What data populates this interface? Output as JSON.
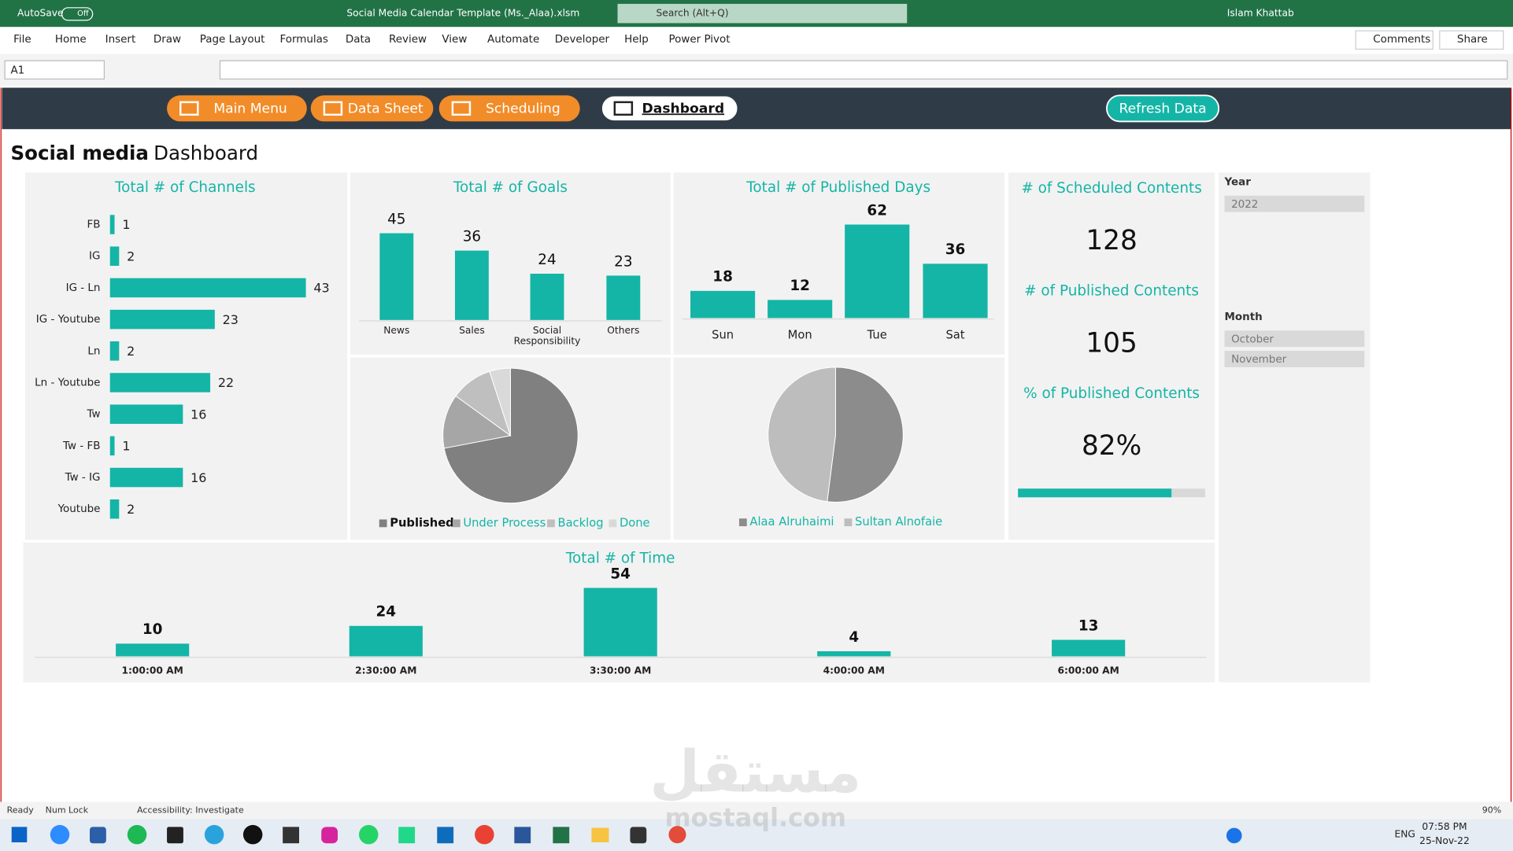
{
  "window": {
    "autosave": "AutoSave",
    "autosave_state": "Off",
    "title": "Social Media Calendar Template (Ms._Alaa).xlsm",
    "search": "Search (Alt+Q)",
    "user": "Islam Khattab"
  },
  "ribbon": {
    "tabs": [
      "File",
      "Home",
      "Insert",
      "Draw",
      "Page Layout",
      "Formulas",
      "Data",
      "Review",
      "View",
      "Automate",
      "Developer",
      "Help",
      "Power Pivot"
    ],
    "comments": "Comments",
    "share": "Share"
  },
  "formula_bar": {
    "name_box": "A1"
  },
  "nav": {
    "buttons": [
      "Main Menu",
      "Data Sheet",
      "Scheduling",
      "Dashboard"
    ],
    "refresh": "Refresh Data"
  },
  "heading": {
    "bold": "Social media",
    "rest": "Dashboard"
  },
  "chart_data": [
    {
      "type": "hbar",
      "title": "Total # of Channels",
      "categories": [
        "FB",
        "IG",
        "IG - Ln",
        "IG - Youtube",
        "Ln",
        "Ln - Youtube",
        "Tw",
        "Tw - FB",
        "Tw - IG",
        "Youtube"
      ],
      "values": [
        1,
        2,
        43,
        23,
        2,
        22,
        16,
        1,
        16,
        2
      ],
      "color": "#14b5a6"
    },
    {
      "type": "bar",
      "title": "Total # of Goals",
      "categories": [
        "News",
        "Sales",
        "Social Responsibility",
        "Others"
      ],
      "values": [
        45,
        36,
        24,
        23
      ],
      "color": "#14b5a6"
    },
    {
      "type": "bar",
      "title": "Total # of Published Days",
      "categories": [
        "Sun",
        "Mon",
        "Tue",
        "Sat"
      ],
      "values": [
        18,
        12,
        62,
        36
      ],
      "color": "#14b5a6"
    },
    {
      "type": "pie",
      "categories": [
        "Published",
        "Under Process",
        "Backlog",
        "Done"
      ],
      "values": [
        72,
        13,
        10,
        5
      ],
      "colors": [
        "#808080",
        "#a6a6a6",
        "#bfbfbf",
        "#d9d9d9"
      ]
    },
    {
      "type": "pie",
      "categories": [
        "Alaa Alruhaimi",
        "Sultan Alnofaie"
      ],
      "values": [
        52,
        48
      ],
      "colors": [
        "#8c8c8c",
        "#bdbdbd"
      ]
    },
    {
      "type": "bar",
      "title": "Total # of  Time",
      "categories": [
        "1:00:00 AM",
        "2:30:00 AM",
        "3:30:00 AM",
        "4:00:00 AM",
        "6:00:00 AM"
      ],
      "values": [
        10,
        24,
        54,
        4,
        13
      ],
      "color": "#14b5a6"
    }
  ],
  "kpis": [
    {
      "title": "# of Scheduled Contents",
      "value": 128
    },
    {
      "title": "# of Published Contents",
      "value": 105
    },
    {
      "title": "% of Published Contents",
      "value": 82,
      "value_label": "82%"
    }
  ],
  "slicers": [
    {
      "title": "Year",
      "items": [
        "2022"
      ]
    },
    {
      "title": "Month",
      "items": [
        "October",
        "November"
      ]
    }
  ],
  "status_bar": {
    "items": [
      "Ready",
      "Num Lock",
      "Accessibility: Investigate"
    ],
    "zoom": "90%"
  },
  "taskbar": {
    "language": "ENG",
    "time": "07:58 PM",
    "date": "25-Nov-22"
  },
  "watermark": {
    "arabic": "مستقل",
    "latin": "mostaql.com"
  }
}
